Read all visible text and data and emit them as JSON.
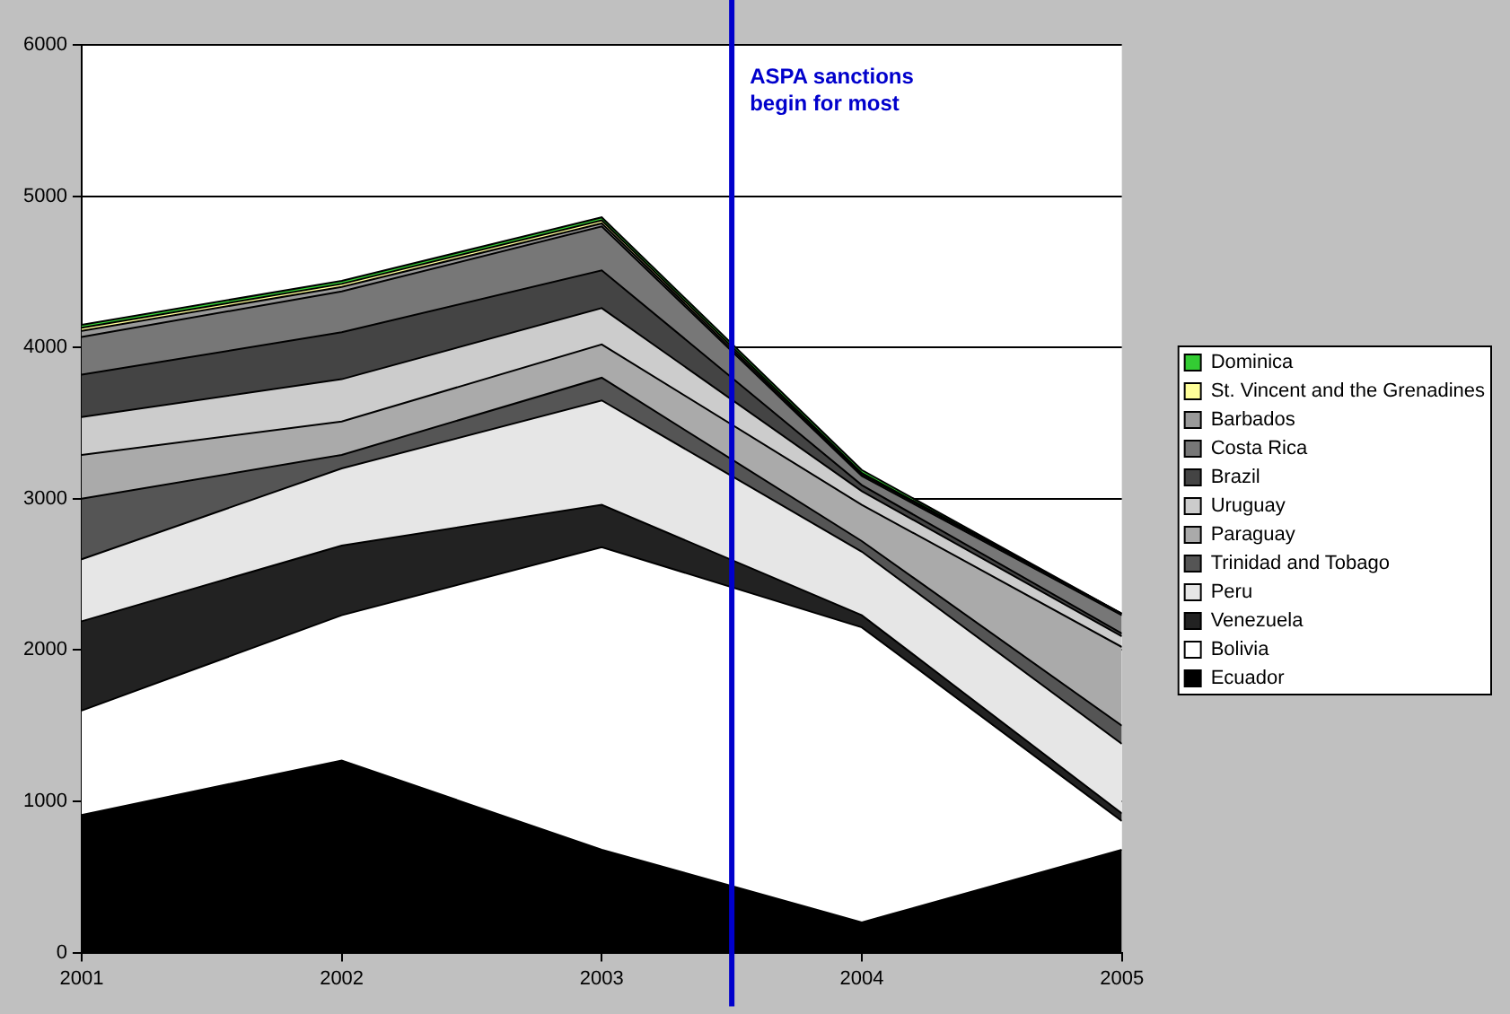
{
  "chart_data": {
    "type": "area",
    "stacked": true,
    "x": [
      2001,
      2002,
      2003,
      2004,
      2005
    ],
    "xlim": [
      2001,
      2005
    ],
    "xticks": [
      2001,
      2002,
      2003,
      2004,
      2005
    ],
    "ylim": [
      0,
      6000
    ],
    "yticks": [
      0,
      1000,
      2000,
      3000,
      4000,
      5000,
      6000
    ],
    "grid": "y",
    "legend": "right",
    "series": [
      {
        "name": "Ecuador",
        "color": "#000000",
        "values": [
          910,
          1270,
          680,
          200,
          680
        ]
      },
      {
        "name": "Bolivia",
        "color": "#ffffff",
        "values": [
          690,
          960,
          2000,
          1950,
          190
        ]
      },
      {
        "name": "Venezuela",
        "color": "#222222",
        "values": [
          590,
          460,
          280,
          80,
          50
        ]
      },
      {
        "name": "Peru",
        "color": "#e6e6e6",
        "values": [
          410,
          510,
          690,
          420,
          460
        ]
      },
      {
        "name": "Trinidad and Tobago",
        "color": "#555555",
        "values": [
          400,
          90,
          150,
          70,
          120
        ]
      },
      {
        "name": "Paraguay",
        "color": "#aaaaaa",
        "values": [
          290,
          220,
          220,
          240,
          520
        ]
      },
      {
        "name": "Uruguay",
        "color": "#cccccc",
        "values": [
          250,
          280,
          240,
          90,
          70
        ]
      },
      {
        "name": "Brazil",
        "color": "#444444",
        "values": [
          280,
          310,
          250,
          40,
          20
        ]
      },
      {
        "name": "Costa Rica",
        "color": "#777777",
        "values": [
          250,
          270,
          290,
          60,
          120
        ]
      },
      {
        "name": "Barbados",
        "color": "#999999",
        "values": [
          40,
          30,
          20,
          10,
          10
        ]
      },
      {
        "name": "St. Vincent and the Grenadines",
        "color": "#ffff99",
        "values": [
          20,
          20,
          20,
          10,
          0
        ]
      },
      {
        "name": "Dominica",
        "color": "#33cc33",
        "values": [
          20,
          20,
          20,
          20,
          0
        ]
      }
    ],
    "ref_lines": [
      {
        "axis": "x",
        "value": 2003.5,
        "label": "ASPA sanctions begin for most",
        "color": "#0000cc"
      }
    ]
  }
}
